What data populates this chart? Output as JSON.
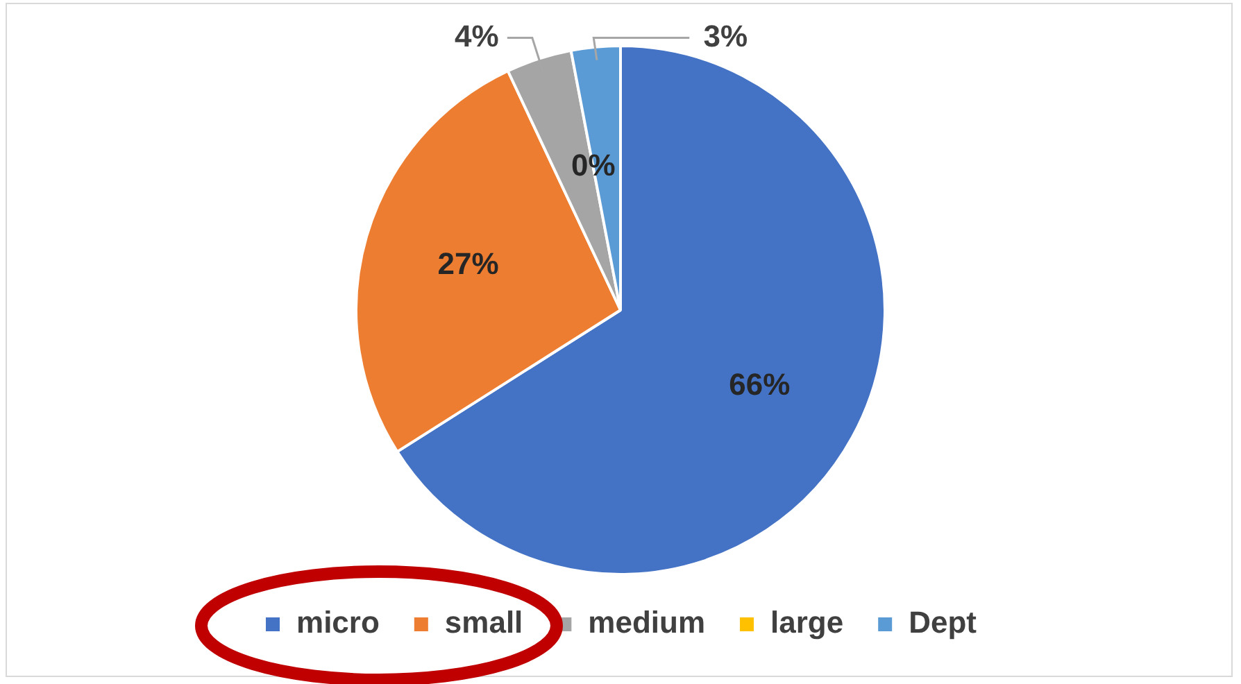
{
  "chart_data": {
    "type": "pie",
    "categories": [
      "micro",
      "small",
      "medium",
      "large",
      "Dept"
    ],
    "values": [
      66,
      27,
      4,
      0,
      3
    ],
    "colors": [
      "#4472c4",
      "#ed7d31",
      "#a5a5a5",
      "#ffc000",
      "#5b9bd5"
    ],
    "value_labels": [
      "66%",
      "27%",
      "4%",
      "0%",
      "3%"
    ],
    "legend": "bottom"
  }
}
